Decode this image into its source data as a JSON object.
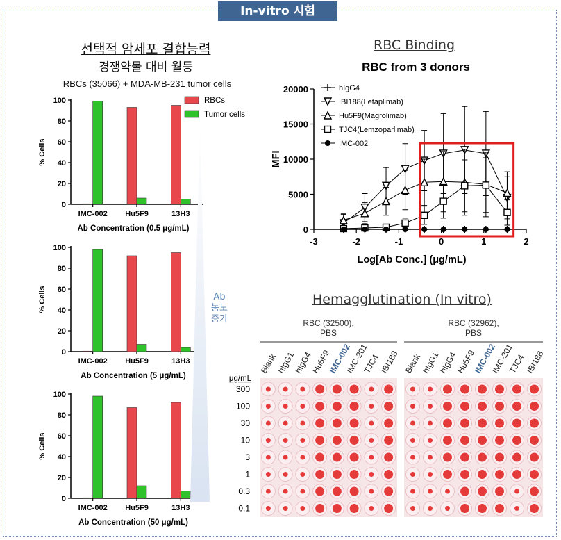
{
  "header": {
    "title": "In-vitro 시험"
  },
  "left": {
    "title": "선택적 암세포 결합능력",
    "subtitle": "경쟁약물 대비 월등",
    "cell_note": "RBCs (35066) + MDA-MB-231 tumor cells",
    "arrow_label": [
      "Ab",
      "농도",
      "증가"
    ]
  },
  "colors": {
    "rbc": "#e8474c",
    "tumor": "#2fc22a",
    "header": "#3f6592",
    "highlight": "#e01e1e",
    "well": "#e53a3a"
  },
  "chart_data": [
    {
      "type": "bar",
      "xlabel": "Ab Concentration (0.5 μg/mL)",
      "ylabel": "% Cells",
      "ylim": [
        0,
        100
      ],
      "yticks": [
        0,
        20,
        40,
        60,
        80,
        100
      ],
      "categories": [
        "IMC-002",
        "Hu5F9",
        "13H3"
      ],
      "series": [
        {
          "name": "RBCs",
          "values": [
            0.5,
            93,
            95
          ]
        },
        {
          "name": "Tumor cells",
          "values": [
            99,
            6,
            5
          ]
        }
      ],
      "legend": "top-right"
    },
    {
      "type": "bar",
      "xlabel": "Ab Concentration (5 μg/mL)",
      "ylabel": "% Cells",
      "ylim": [
        0,
        100
      ],
      "yticks": [
        0,
        20,
        40,
        60,
        80,
        100
      ],
      "categories": [
        "IMC-002",
        "Hu5F9",
        "13H3"
      ],
      "series": [
        {
          "name": "RBCs",
          "values": [
            0.5,
            92,
            95
          ]
        },
        {
          "name": "Tumor cells",
          "values": [
            98,
            7,
            4
          ]
        }
      ]
    },
    {
      "type": "bar",
      "xlabel": "Ab Concentration (50 μg/mL)",
      "ylabel": "% Cells",
      "ylim": [
        0,
        100
      ],
      "yticks": [
        0,
        20,
        40,
        60,
        80,
        100
      ],
      "categories": [
        "IMC-002",
        "Hu5F9",
        "13H3"
      ],
      "series": [
        {
          "name": "RBCs",
          "values": [
            0.5,
            87,
            92
          ]
        },
        {
          "name": "Tumor cells",
          "values": [
            98,
            12,
            7
          ]
        }
      ]
    },
    {
      "type": "scatter",
      "panel_title": "RBC Binding",
      "title": "RBC from 3 donors",
      "xlabel": "Log[Ab Conc.] (μg/mL)",
      "ylabel": "MFI",
      "xlim": [
        -3,
        2
      ],
      "ylim": [
        0,
        20000
      ],
      "xticks": [
        -3,
        -2,
        -1,
        0,
        1,
        2
      ],
      "yticks": [
        0,
        5000,
        10000,
        15000,
        20000
      ],
      "x": [
        -2.3,
        -1.8,
        -1.3,
        -0.85,
        -0.4,
        0.05,
        0.55,
        1.05,
        1.55
      ],
      "series": [
        {
          "name": "hIgG4",
          "marker": "plus",
          "values": [
            0,
            0,
            0,
            0,
            0,
            0,
            0,
            0,
            0
          ]
        },
        {
          "name": "IBI188(Letaplimab)",
          "marker": "triangle-down",
          "values": [
            900,
            3100,
            6200,
            8600,
            9800,
            10800,
            11300,
            10800,
            4500
          ]
        },
        {
          "name": "Hu5F9(Magrolimab)",
          "marker": "triangle-up",
          "values": [
            1300,
            2300,
            4000,
            5600,
            6700,
            6800,
            6700,
            6400,
            5200
          ]
        },
        {
          "name": "TJC4(Lemzoparlimab)",
          "marker": "square",
          "values": [
            100,
            200,
            300,
            900,
            2000,
            4000,
            6200,
            6300,
            2400
          ]
        },
        {
          "name": "IMC-002",
          "marker": "circle",
          "values": [
            0,
            0,
            0,
            0,
            0,
            0,
            0,
            0,
            0
          ]
        }
      ],
      "errors": {
        "IBI188(Letaplimab)": [
          1200,
          2000,
          2600,
          3600,
          4300,
          5700,
          6200,
          6000,
          3000
        ],
        "Hu5F9(Magrolimab)": [
          900,
          1500,
          2000,
          2800,
          3300,
          4300,
          4700,
          4600,
          3000
        ],
        "TJC4(Lemzoparlimab)": [
          200,
          300,
          400,
          700,
          1300,
          2400,
          3700,
          3900,
          1800
        ]
      },
      "highlight_range": [
        -0.5,
        1.7
      ],
      "legend": "top-left"
    }
  ],
  "hema": {
    "title": "Hemagglutination (In vitro)",
    "groups": [
      "RBC (32500),\nPBS",
      "RBC (32962),\nPBS"
    ],
    "columns": [
      "Blank",
      "hIgG1",
      "hIgG4",
      "Hu5F9",
      "IMC-002",
      "IMC-201",
      "TJC4",
      "IBI188"
    ],
    "unit": "μg/mL",
    "rows": [
      "300",
      "100",
      "30",
      "10",
      "3",
      "1",
      "0.3",
      "0.1"
    ]
  }
}
